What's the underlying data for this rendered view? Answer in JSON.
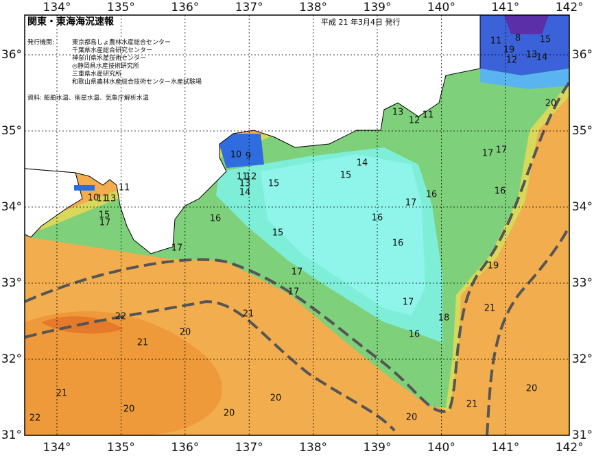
{
  "header": {
    "title": "関東・東海海況速報",
    "date": "平成 21 年3月4日 発行"
  },
  "issuers": {
    "label": "発行機関:",
    "organizations": [
      "東京都島しょ農林水産総合センター",
      "千葉県水産総合研究センター",
      "神奈川県水産技術センター",
      "◎静岡県水産技術研究所",
      "三重県水産研究所",
      "和歌山県農林水産総合技術センター水産試験場"
    ]
  },
  "source": "資料: 船舶水温、衛星水温、気象庁解析水温",
  "longitude_labels": [
    "134°",
    "135°",
    "136°",
    "137°",
    "138°",
    "139°",
    "140°",
    "141°",
    "142°"
  ],
  "latitude_labels": [
    "36°",
    "35°",
    "34°",
    "33°",
    "32°",
    "31°"
  ],
  "contour_labels": [
    8,
    15,
    11,
    19,
    13,
    14,
    12,
    20,
    13,
    12,
    11,
    17,
    17,
    10,
    9,
    14,
    15,
    16,
    15,
    11,
    12,
    13,
    14,
    11,
    10,
    11,
    13,
    15,
    17,
    17,
    16,
    16,
    16,
    15,
    16,
    17,
    19,
    17,
    17,
    21,
    21,
    22,
    17,
    18,
    16,
    20,
    21,
    21,
    20,
    21,
    20,
    20,
    20,
    20,
    22
  ]
}
